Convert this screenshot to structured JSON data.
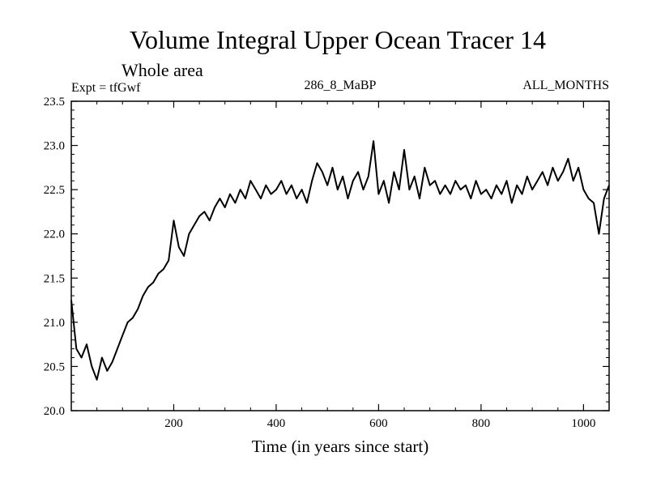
{
  "chart_data": {
    "type": "line",
    "title": "Volume Integral Upper Ocean Tracer 14",
    "subtitle": "Whole area",
    "annotations": {
      "experiment": "Expt = tfGwf",
      "period": "286_8_MaBP",
      "months": "ALL_MONTHS"
    },
    "xlabel": "Time (in years since start)",
    "ylabel": "",
    "xlim": [
      0,
      1050
    ],
    "ylim": [
      20.0,
      23.5
    ],
    "x_ticks": [
      200,
      400,
      600,
      800,
      1000
    ],
    "y_ticks": [
      "20.0",
      "20.5",
      "21.0",
      "21.5",
      "22.0",
      "22.5",
      "23.0",
      "23.5"
    ],
    "grid": false,
    "line_color": "#000000",
    "series": [
      {
        "name": "Tracer 14",
        "x": [
          0,
          10,
          20,
          30,
          40,
          50,
          60,
          70,
          80,
          90,
          100,
          110,
          120,
          130,
          140,
          150,
          160,
          170,
          180,
          190,
          200,
          210,
          220,
          230,
          240,
          250,
          260,
          270,
          280,
          290,
          300,
          310,
          320,
          330,
          340,
          350,
          360,
          370,
          380,
          390,
          400,
          410,
          420,
          430,
          440,
          450,
          460,
          470,
          480,
          490,
          500,
          510,
          520,
          530,
          540,
          550,
          560,
          570,
          580,
          590,
          600,
          610,
          620,
          630,
          640,
          650,
          660,
          670,
          680,
          690,
          700,
          710,
          720,
          730,
          740,
          750,
          760,
          770,
          780,
          790,
          800,
          810,
          820,
          830,
          840,
          850,
          860,
          870,
          880,
          890,
          900,
          910,
          920,
          930,
          940,
          950,
          960,
          970,
          980,
          990,
          1000,
          1010,
          1020,
          1030,
          1040,
          1050
        ],
        "values": [
          21.25,
          20.7,
          20.6,
          20.75,
          20.5,
          20.35,
          20.6,
          20.45,
          20.55,
          20.7,
          20.85,
          21.0,
          21.05,
          21.15,
          21.3,
          21.4,
          21.45,
          21.55,
          21.6,
          21.7,
          22.15,
          21.85,
          21.75,
          22.0,
          22.1,
          22.2,
          22.25,
          22.15,
          22.3,
          22.4,
          22.3,
          22.45,
          22.35,
          22.5,
          22.4,
          22.6,
          22.5,
          22.4,
          22.55,
          22.45,
          22.5,
          22.6,
          22.45,
          22.55,
          22.4,
          22.5,
          22.35,
          22.6,
          22.8,
          22.7,
          22.55,
          22.75,
          22.5,
          22.65,
          22.4,
          22.6,
          22.7,
          22.5,
          22.65,
          23.05,
          22.45,
          22.6,
          22.35,
          22.7,
          22.5,
          22.95,
          22.5,
          22.65,
          22.4,
          22.75,
          22.55,
          22.6,
          22.45,
          22.55,
          22.45,
          22.6,
          22.5,
          22.55,
          22.4,
          22.6,
          22.45,
          22.5,
          22.4,
          22.55,
          22.45,
          22.6,
          22.35,
          22.55,
          22.45,
          22.65,
          22.5,
          22.6,
          22.7,
          22.55,
          22.75,
          22.6,
          22.7,
          22.85,
          22.6,
          22.75,
          22.5,
          22.4,
          22.35,
          22.0,
          22.4,
          22.55
        ]
      }
    ]
  }
}
